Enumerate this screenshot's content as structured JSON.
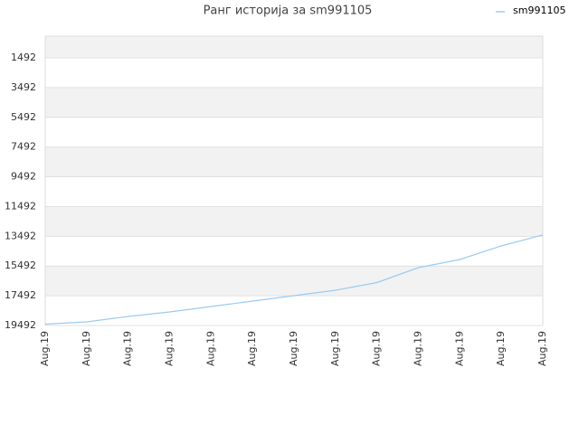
{
  "chart_data": {
    "type": "line",
    "title": "Ранг историја за sm991105",
    "categories": [
      "Aug.19",
      "Aug.19",
      "Aug.19",
      "Aug.19",
      "Aug.19",
      "Aug.19",
      "Aug.19",
      "Aug.19",
      "Aug.19",
      "Aug.19",
      "Aug.19",
      "Aug.19",
      "Aug.19"
    ],
    "series": [
      {
        "name": "sm991105",
        "color": "#9ccbf0",
        "values": [
          19400,
          19249,
          18884,
          18580,
          18215,
          17850,
          17485,
          17120,
          16603,
          15600,
          15052,
          14140,
          13400
        ]
      }
    ],
    "ylim": [
      19492,
      32
    ],
    "yticks": [
      1492,
      3492,
      5492,
      7492,
      9492,
      11492,
      13492,
      15492,
      17492,
      19492
    ],
    "grid": true,
    "legend": "top-right"
  }
}
